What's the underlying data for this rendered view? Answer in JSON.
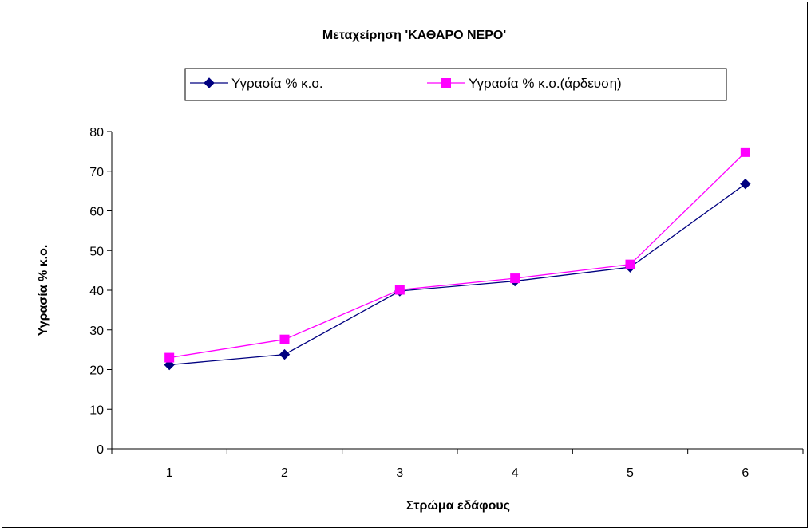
{
  "chart_data": {
    "type": "line",
    "title": "Μεταχείρηση 'ΚΑΘΑΡΟ ΝΕΡΟ'",
    "xlabel": "Στρώμα εδάφους",
    "ylabel": "Υγρασία % κ.ο.",
    "categories": [
      "1",
      "2",
      "3",
      "4",
      "5",
      "6"
    ],
    "ylim": [
      0,
      80
    ],
    "yticks": [
      "0",
      "10",
      "20",
      "30",
      "40",
      "50",
      "60",
      "70",
      "80"
    ],
    "grid": false,
    "legend_position": "top",
    "series": [
      {
        "name": "Υγρασία % κ.ο.",
        "values": [
          21.2,
          23.8,
          39.8,
          42.3,
          45.8,
          66.8
        ],
        "color": "#000080",
        "marker": "diamond"
      },
      {
        "name": "Υγρασία % κ.ο.(άρδευση)",
        "values": [
          23.0,
          27.6,
          40.1,
          43.0,
          46.5,
          74.8
        ],
        "color": "#FF00FF",
        "marker": "square"
      }
    ]
  }
}
